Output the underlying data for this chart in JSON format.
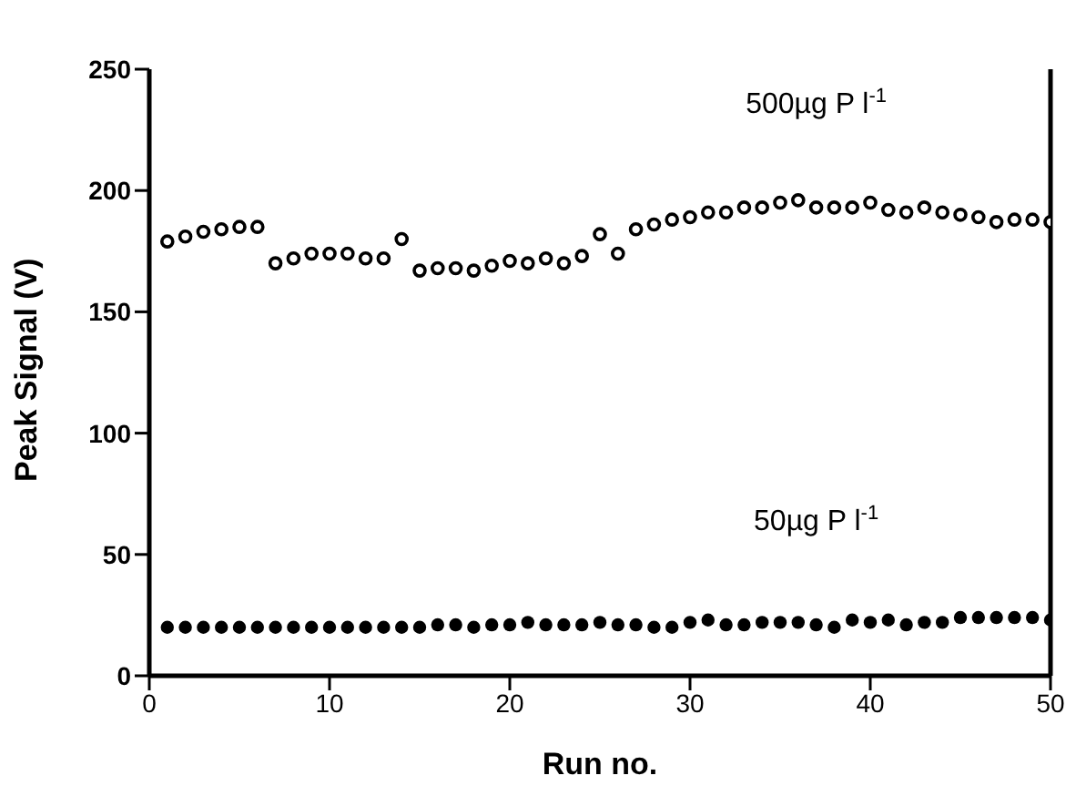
{
  "chart_data": {
    "type": "scatter",
    "xlabel": "Run no.",
    "ylabel": "Peak Signal (V)",
    "x": [
      1,
      2,
      3,
      4,
      5,
      6,
      7,
      8,
      9,
      10,
      11,
      12,
      13,
      14,
      15,
      16,
      17,
      18,
      19,
      20,
      21,
      22,
      23,
      24,
      25,
      26,
      27,
      28,
      29,
      30,
      31,
      32,
      33,
      34,
      35,
      36,
      37,
      38,
      39,
      40,
      41,
      42,
      43,
      44,
      45,
      46,
      47,
      48,
      49,
      50
    ],
    "series": [
      {
        "name": "500µg P l$^{-1}$",
        "color": "#000000",
        "values": [
          179,
          181,
          183,
          184,
          185,
          185,
          170,
          172,
          174,
          174,
          174,
          172,
          172,
          180,
          167,
          168,
          168,
          167,
          169,
          171,
          170,
          172,
          170,
          173,
          182,
          174,
          184,
          186,
          188,
          189,
          191,
          191,
          193,
          193,
          195,
          196,
          193,
          193,
          193,
          195,
          192,
          191,
          193,
          191,
          190,
          189,
          187,
          188,
          188,
          187
        ]
      },
      {
        "name": "50µg P l$^{-1}$",
        "color": "#000000",
        "values": [
          20,
          20,
          20,
          20,
          20,
          20,
          20,
          20,
          20,
          20,
          20,
          20,
          20,
          20,
          20,
          21,
          21,
          20,
          21,
          21,
          22,
          21,
          21,
          21,
          22,
          21,
          21,
          20,
          20,
          22,
          23,
          21,
          21,
          22,
          22,
          22,
          21,
          20,
          23,
          22,
          23,
          21,
          22,
          22,
          24,
          24,
          24,
          24,
          24,
          23
        ]
      }
    ],
    "xlim": [
      0,
      50
    ],
    "xticks": [
      0,
      10,
      20,
      30,
      40,
      50
    ],
    "ylim": [
      0,
      250
    ],
    "yticks": [
      0,
      50,
      100,
      150,
      200,
      250
    ],
    "marker": "circle",
    "grid": false,
    "legend": false
  }
}
